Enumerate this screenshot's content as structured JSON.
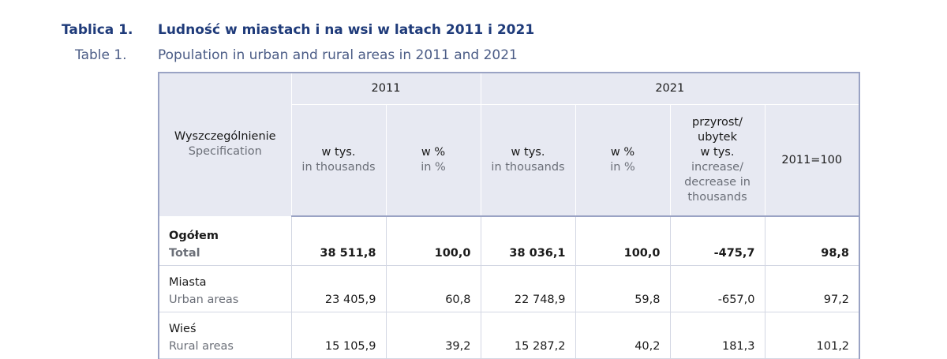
{
  "caption": {
    "label_pl": "Tablica 1.",
    "title_pl": "Ludność w miastach i na wsi w latach 2011 i 2021",
    "label_en": "Table 1.",
    "title_en": "Population in urban and rural areas in 2011 and 2021"
  },
  "header": {
    "spec_pl": "Wyszczególnienie",
    "spec_en": "Specification",
    "year1": "2011",
    "year2": "2021",
    "col_thousands_pl": "w tys.",
    "col_thousands_en": "in thousands",
    "col_percent_pl": "w %",
    "col_percent_en": "in %",
    "col_change_pl": "przyrost/\nubytek\nw tys.",
    "col_change_en": "increase/\ndecrease in\nthousands",
    "col_index": "2011=100"
  },
  "rows": [
    {
      "label_pl": "Ogółem",
      "label_en": "Total",
      "v2011_th": "38 511,8",
      "v2011_pct": "100,0",
      "v2021_th": "38 036,1",
      "v2021_pct": "100,0",
      "change": "-475,7",
      "index": "98,8",
      "bold": true
    },
    {
      "label_pl": "Miasta",
      "label_en": "Urban areas",
      "v2011_th": "23 405,9",
      "v2011_pct": "60,8",
      "v2021_th": "22 748,9",
      "v2021_pct": "59,8",
      "change": "-657,0",
      "index": "97,2",
      "bold": false
    },
    {
      "label_pl": "Wieś",
      "label_en": "Rural areas",
      "v2011_th": "15 105,9",
      "v2011_pct": "39,2",
      "v2021_th": "15 287,2",
      "v2021_pct": "40,2",
      "change": "181,3",
      "index": "101,2",
      "bold": false
    }
  ],
  "colors": {
    "caption": "#1f3b7a",
    "header_bg": "#e7e9f2",
    "border": "#9aa3c4",
    "english_text": "#6b6f78"
  }
}
